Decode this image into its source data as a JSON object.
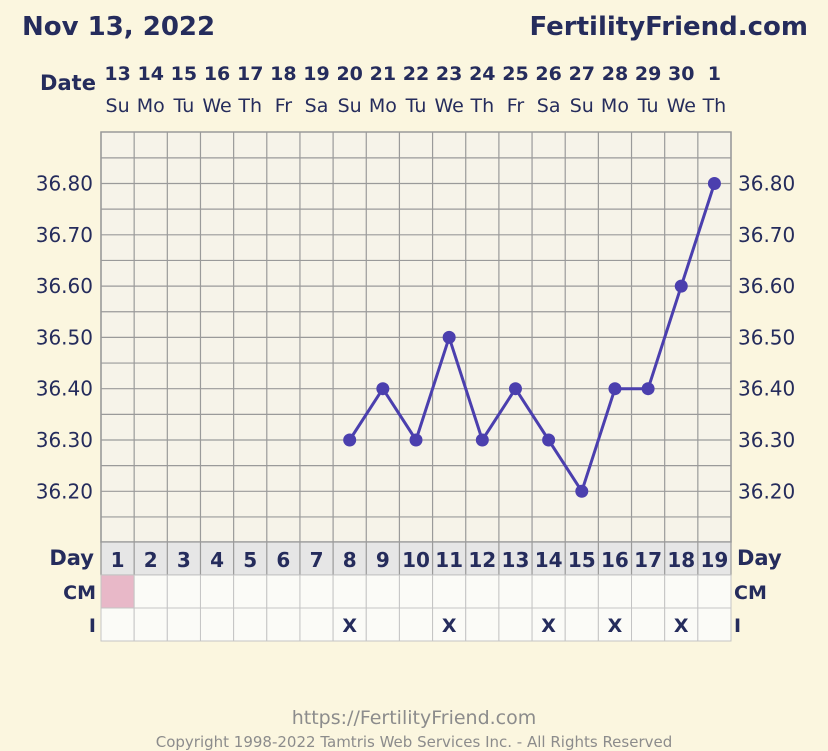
{
  "header": {
    "date": "Nov 13, 2022",
    "site": "FertilityFriend.com"
  },
  "footer": {
    "url": "https://FertilityFriend.com",
    "copyright": "Copyright 1998-2022 Tamtris Web Services Inc. - All Rights Reserved"
  },
  "labels": {
    "date_row": "Date",
    "day_row": "Day",
    "cm_row": "CM",
    "i_row": "I"
  },
  "colors": {
    "line": "#4b3fae",
    "grid": "#9a9a9a",
    "plot_bg": "#f6f3e9",
    "cm_filled": "#e8b8c8",
    "text_dark": "#252c5c"
  },
  "chart_data": {
    "type": "line",
    "title": "",
    "xlabel": "",
    "ylabel": "",
    "ylim": [
      36.1,
      36.9
    ],
    "y_ticks": [
      "36.80",
      "36.70",
      "36.60",
      "36.50",
      "36.40",
      "36.30",
      "36.20"
    ],
    "y_tick_values": [
      36.8,
      36.7,
      36.6,
      36.5,
      36.4,
      36.3,
      36.2
    ],
    "grid": true,
    "dates": [
      "13",
      "14",
      "15",
      "16",
      "17",
      "18",
      "19",
      "20",
      "21",
      "22",
      "23",
      "24",
      "25",
      "26",
      "27",
      "28",
      "29",
      "30",
      "1"
    ],
    "weekdays": [
      "Su",
      "Mo",
      "Tu",
      "We",
      "Th",
      "Fr",
      "Sa",
      "Su",
      "Mo",
      "Tu",
      "We",
      "Th",
      "Fr",
      "Sa",
      "Su",
      "Mo",
      "Tu",
      "We",
      "Th"
    ],
    "cycle_days": [
      "1",
      "2",
      "3",
      "4",
      "5",
      "6",
      "7",
      "8",
      "9",
      "10",
      "11",
      "12",
      "13",
      "14",
      "15",
      "16",
      "17",
      "18",
      "19"
    ],
    "series": [
      {
        "x": [
          8,
          9,
          10,
          11,
          12,
          13,
          14,
          15,
          16,
          17,
          18,
          19
        ],
        "values": [
          36.3,
          36.4,
          36.3,
          36.5,
          36.3,
          36.4,
          36.3,
          36.2,
          36.4,
          36.4,
          36.6,
          36.8
        ]
      }
    ],
    "cm_filled_days": [
      1
    ],
    "intercourse_days": [
      8,
      11,
      14,
      16,
      18
    ],
    "intercourse_mark": "X"
  }
}
